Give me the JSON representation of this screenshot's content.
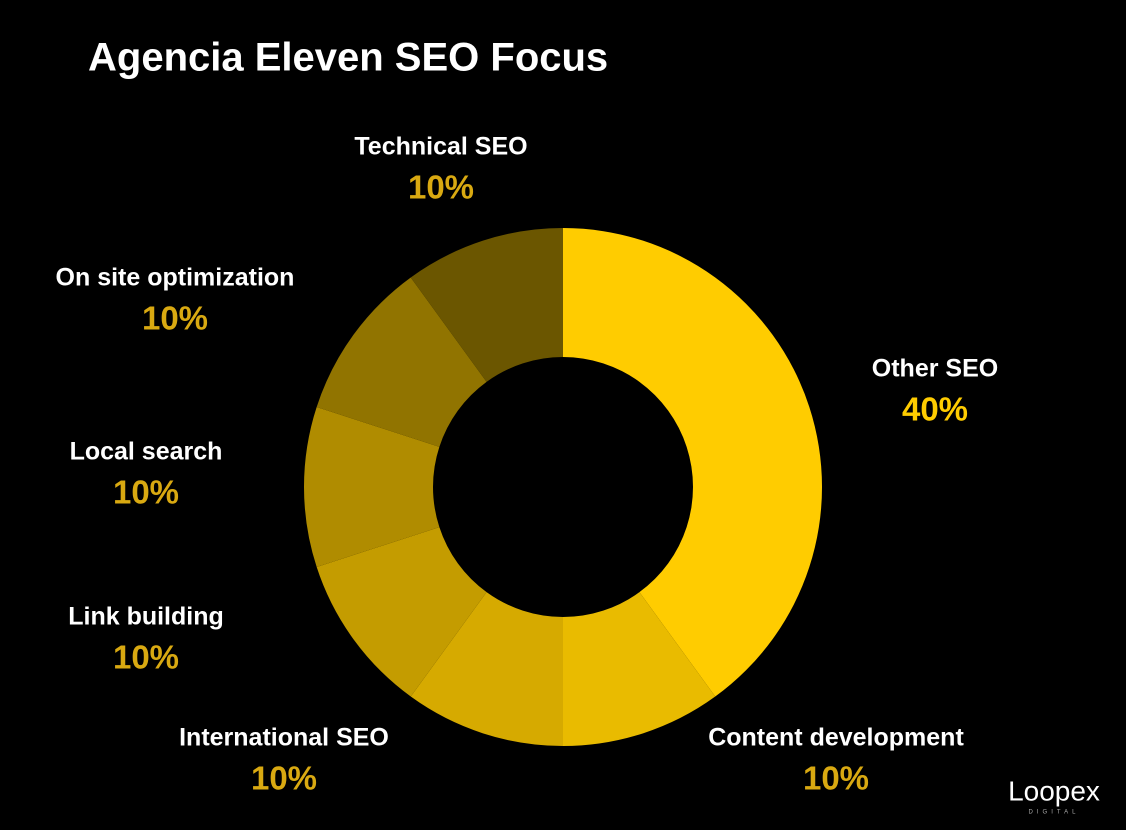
{
  "chart_data": {
    "type": "donut",
    "title": "Agencia Eleven SEO Focus",
    "categories": [
      "Other SEO",
      "Content development",
      "International SEO",
      "Link building",
      "Local search",
      "On site optimization",
      "Technical SEO"
    ],
    "values": [
      40,
      10,
      10,
      10,
      10,
      10,
      10
    ],
    "value_labels": [
      "40%",
      "10%",
      "10%",
      "10%",
      "10%",
      "10%",
      "10%"
    ],
    "colors": [
      "#ffcc00",
      "#e9bb00",
      "#d6aa00",
      "#c49c00",
      "#b08c00",
      "#917400",
      "#6b5600"
    ]
  },
  "logo": {
    "name": "Loopex",
    "tagline": "DIGITAL"
  }
}
